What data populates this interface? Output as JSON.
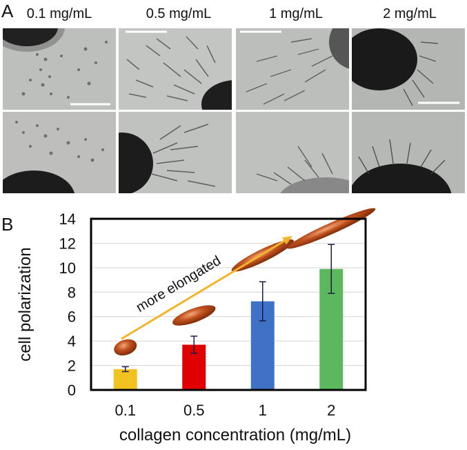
{
  "panel_a": {
    "letter": "A",
    "columns": [
      {
        "label": "0.1 mg/mL"
      },
      {
        "label": "0.5 mg/mL"
      },
      {
        "label": "1 mg/mL"
      },
      {
        "label": "2 mg/mL"
      }
    ]
  },
  "panel_b": {
    "letter": "B"
  },
  "chart_data": {
    "type": "bar",
    "categories": [
      "0.1",
      "0.5",
      "1",
      "2"
    ],
    "values": [
      1.7,
      3.7,
      7.25,
      9.9
    ],
    "errors": [
      0.2,
      0.7,
      1.6,
      2.0
    ],
    "bar_colors": [
      "#f2c221",
      "#e00000",
      "#3f72c4",
      "#5cb85c"
    ],
    "xlabel": "collagen concentration (mg/mL)",
    "ylabel": "cell polarization",
    "ylim": [
      0,
      14
    ],
    "yticks": [
      0,
      2,
      4,
      6,
      8,
      10,
      12,
      14
    ],
    "grid": true,
    "annotation": "more elongated",
    "annotation_color": "#f2b42a",
    "ellipse_color": "#c0501e"
  }
}
